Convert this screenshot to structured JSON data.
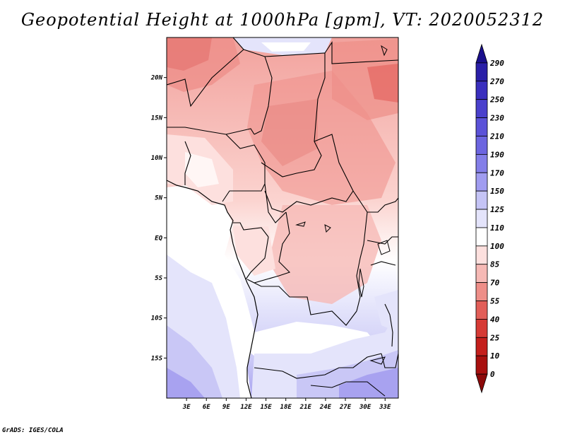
{
  "title": "Geopotential Height at 1000hPa [gpm], VT: 2020052312",
  "credit": "GrADS: IGES/COLA",
  "map": {
    "lon_range": [
      0,
      35
    ],
    "lat_range": [
      -20,
      25
    ],
    "lat_labels": [
      {
        "lat": 20,
        "label": "20N"
      },
      {
        "lat": 15,
        "label": "15N"
      },
      {
        "lat": 10,
        "label": "10N"
      },
      {
        "lat": 5,
        "label": "5N"
      },
      {
        "lat": 0,
        "label": "EQ"
      },
      {
        "lat": -5,
        "label": "5S"
      },
      {
        "lat": -10,
        "label": "10S"
      },
      {
        "lat": -15,
        "label": "15S"
      }
    ],
    "lon_labels": [
      {
        "lon": 3,
        "label": "3E"
      },
      {
        "lon": 6,
        "label": "6E"
      },
      {
        "lon": 9,
        "label": "9E"
      },
      {
        "lon": 12,
        "label": "12E"
      },
      {
        "lon": 15,
        "label": "15E"
      },
      {
        "lon": 18,
        "label": "18E"
      },
      {
        "lon": 21,
        "label": "21E"
      },
      {
        "lon": 24,
        "label": "24E"
      },
      {
        "lon": 27,
        "label": "27E"
      },
      {
        "lon": 30,
        "label": "30E"
      },
      {
        "lon": 33,
        "label": "33E"
      }
    ]
  },
  "colorbar": {
    "levels": [
      "290",
      "270",
      "250",
      "230",
      "210",
      "190",
      "170",
      "150",
      "125",
      "110",
      "100",
      "85",
      "70",
      "55",
      "40",
      "25",
      "10",
      "0"
    ],
    "colors": [
      "#1a0f8c",
      "#2a1fa8",
      "#3a2fbe",
      "#4a40cc",
      "#5b52d8",
      "#6c65e0",
      "#837ee8",
      "#a09cf0",
      "#c5c4f6",
      "#e4e4fb",
      "#ffffff",
      "#fde0de",
      "#f6b9b5",
      "#ee8e88",
      "#e25e58",
      "#d63a35",
      "#c41f1c",
      "#a8100f",
      "#8c0a0a"
    ]
  }
}
